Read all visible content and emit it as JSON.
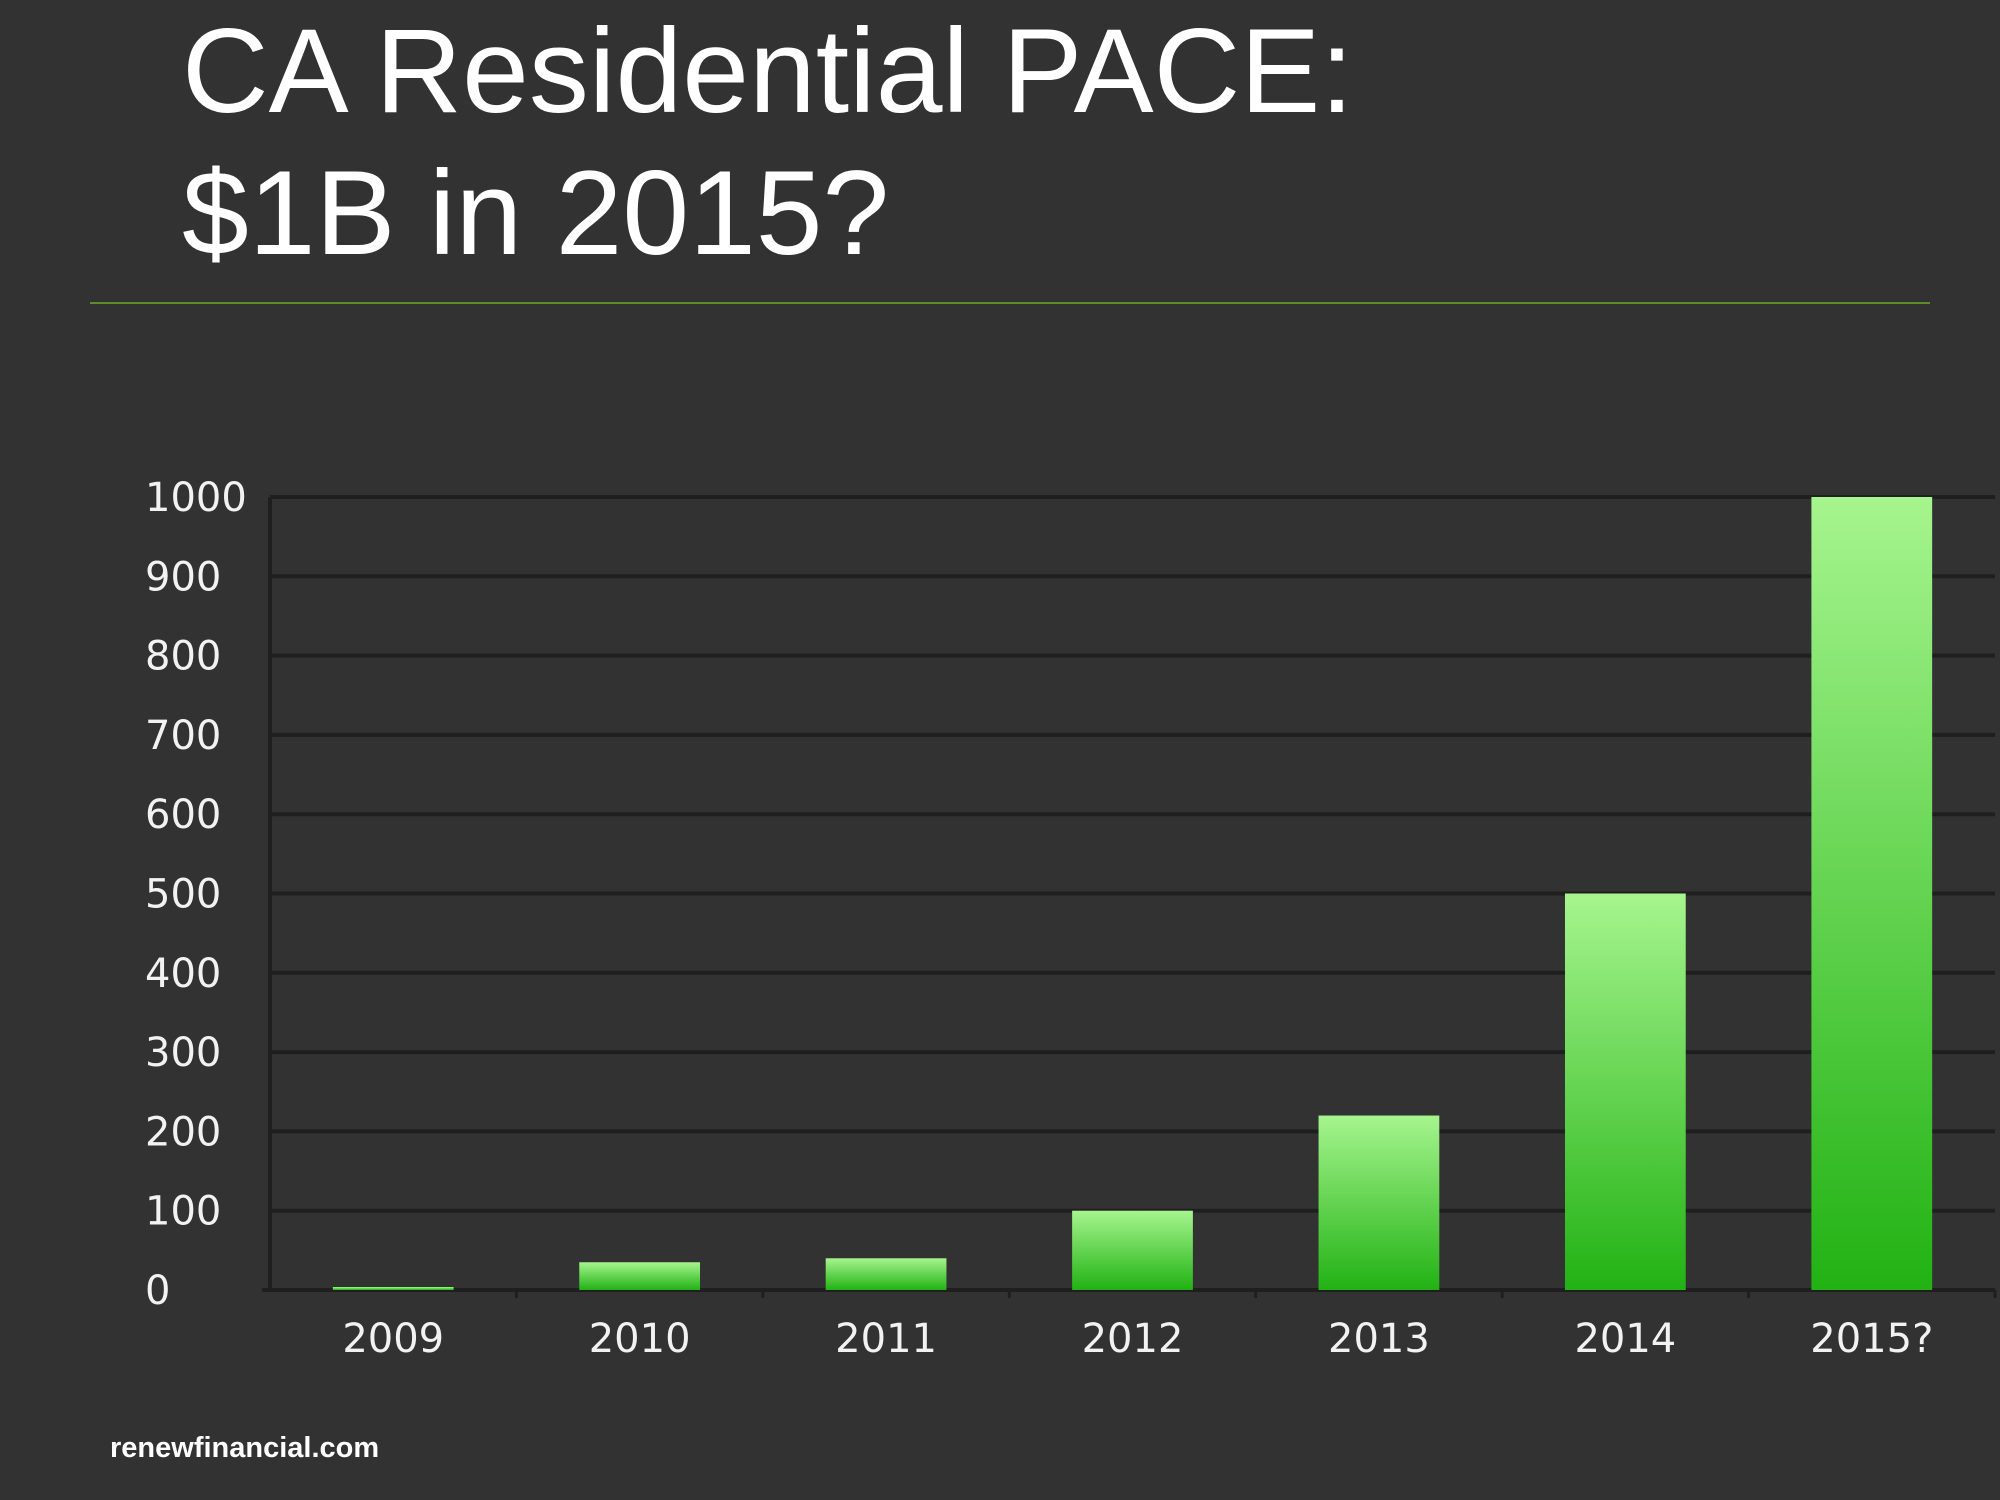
{
  "slide": {
    "title_line1": "CA Residential PACE:",
    "title_line2": "$1B in 2015?",
    "footer": "renewfinancial.com"
  },
  "colors": {
    "background": "#323232",
    "bar_top": "#a6f58e",
    "bar_bottom": "#22b214",
    "gridline": "#1f1f1f",
    "rule": "#5f8a2c"
  },
  "chart_data": {
    "type": "bar",
    "title": "",
    "xlabel": "",
    "ylabel": "",
    "categories": [
      "2009",
      "2010",
      "2011",
      "2012",
      "2013",
      "2014",
      "2015?"
    ],
    "values": [
      3,
      35,
      40,
      100,
      220,
      500,
      1000
    ],
    "ylim": [
      0,
      1000
    ],
    "yticks": [
      0,
      100,
      200,
      300,
      400,
      500,
      600,
      700,
      800,
      900,
      1000
    ],
    "grid": true,
    "legend": "none"
  }
}
